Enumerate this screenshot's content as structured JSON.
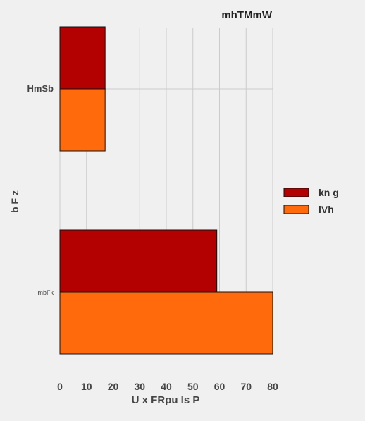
{
  "chart_data": {
    "type": "bar",
    "orientation": "horizontal",
    "title": "mhTMmW",
    "xlabel": "U  x FRpu ls P",
    "ylabel": "b F z",
    "xlim": [
      0,
      80
    ],
    "xticks": [
      0,
      10,
      20,
      30,
      40,
      50,
      60,
      70,
      80
    ],
    "grid": true,
    "legend_position": "right",
    "categories": [
      "HmSb",
      "mbFk"
    ],
    "series": [
      {
        "name": "kn g",
        "color": "#b30000",
        "values": [
          17,
          59
        ]
      },
      {
        "name": "lVh",
        "color": "#ff6a0d",
        "values": [
          17,
          80
        ]
      }
    ]
  }
}
